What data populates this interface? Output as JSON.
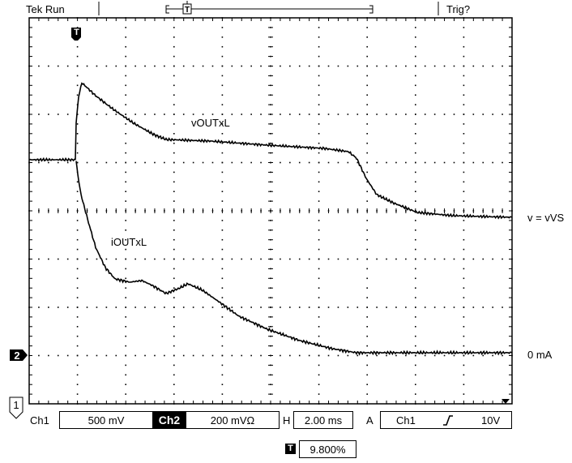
{
  "status": {
    "run_state": "Tek Run",
    "trigger_state": "Trig?"
  },
  "trace_labels": {
    "voltage_trace": "vOUTxL",
    "current_trace": "iOUTxL"
  },
  "right_labels": {
    "ch1_reference": "v = vVS",
    "ch2_reference": "0 mA"
  },
  "markers": {
    "trigger_marker": "T",
    "ch2_marker": "2",
    "ch1_marker": "1"
  },
  "readout": {
    "ch1_label": "Ch1",
    "ch1_scale": "500 mV",
    "ch2_label": "Ch2",
    "ch2_scale": "200 mVΩ",
    "horizontal_label": "H",
    "horizontal_scale": "2.00 ms",
    "acquisition_label": "A",
    "trigger_source": "Ch1",
    "trigger_level": "10V",
    "trigger_position": "9.800%"
  },
  "colors": {
    "trace": "#000000",
    "background": "#ffffff",
    "graticule": "#000000"
  }
}
